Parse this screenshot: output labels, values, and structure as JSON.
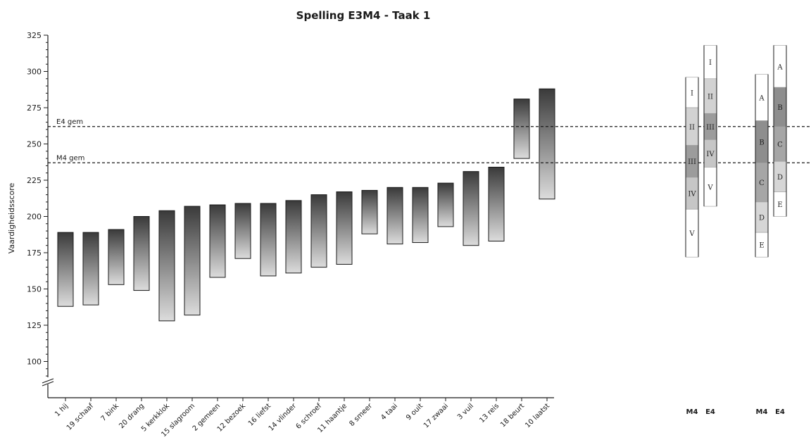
{
  "chart_data": {
    "type": "floating_bar",
    "title": "Spelling E3M4 - Taak 1",
    "ylabel": "Vaardigheidsscore",
    "ylim": [
      75,
      325
    ],
    "yticks": [
      100,
      125,
      150,
      175,
      200,
      225,
      250,
      275,
      300,
      325
    ],
    "categories": [
      "1 hij",
      "19 schaaf",
      "7 bink",
      "20 drang",
      "5 kerkklok",
      "15 slagroom",
      "2 gemeen",
      "12 bezoek",
      "16 liefst",
      "14 vlinder",
      "6 schroef",
      "11 haantje",
      "8 smeer",
      "4 taai",
      "9 ouit",
      "17 zwaai",
      "3 vuil",
      "13 reis",
      "18 beurt",
      "10 laatst"
    ],
    "ranges": [
      [
        138,
        189
      ],
      [
        139,
        189
      ],
      [
        153,
        191
      ],
      [
        149,
        200
      ],
      [
        128,
        204
      ],
      [
        132,
        207
      ],
      [
        158,
        208
      ],
      [
        171,
        209
      ],
      [
        159,
        209
      ],
      [
        161,
        211
      ],
      [
        165,
        215
      ],
      [
        167,
        217
      ],
      [
        188,
        218
      ],
      [
        181,
        220
      ],
      [
        182,
        220
      ],
      [
        193,
        223
      ],
      [
        180,
        231
      ],
      [
        183,
        234
      ],
      [
        240,
        281
      ],
      [
        212,
        288
      ]
    ],
    "reference_lines": [
      {
        "label": "E4 gem",
        "value": 262
      },
      {
        "label": "M4 gem",
        "value": 237
      }
    ],
    "norm_groups": [
      {
        "columns": [
          {
            "label": "M4",
            "top": 296,
            "bottom": 172,
            "bands": [
              {
                "label": "I",
                "from": 275,
                "to": 296,
                "shade": "#ffffff"
              },
              {
                "label": "II",
                "from": 249,
                "to": 275,
                "shade": "#d2d2d2"
              },
              {
                "label": "III",
                "from": 227,
                "to": 249,
                "shade": "#9c9c9c"
              },
              {
                "label": "IV",
                "from": 205,
                "to": 227,
                "shade": "#c6c6c6"
              },
              {
                "label": "V",
                "from": 172,
                "to": 205,
                "shade": "#ffffff"
              }
            ]
          },
          {
            "label": "E4",
            "top": 318,
            "bottom": 207,
            "bands": [
              {
                "label": "I",
                "from": 295,
                "to": 318,
                "shade": "#ffffff"
              },
              {
                "label": "II",
                "from": 271,
                "to": 295,
                "shade": "#d2d2d2"
              },
              {
                "label": "III",
                "from": 253,
                "to": 271,
                "shade": "#9c9c9c"
              },
              {
                "label": "IV",
                "from": 234,
                "to": 253,
                "shade": "#c6c6c6"
              },
              {
                "label": "V",
                "from": 207,
                "to": 234,
                "shade": "#ffffff"
              }
            ]
          }
        ]
      },
      {
        "columns": [
          {
            "label": "M4",
            "top": 298,
            "bottom": 172,
            "bands": [
              {
                "label": "A",
                "from": 266,
                "to": 298,
                "shade": "#ffffff"
              },
              {
                "label": "B",
                "from": 237,
                "to": 266,
                "shade": "#8e8e8e"
              },
              {
                "label": "C",
                "from": 210,
                "to": 237,
                "shade": "#a6a6a6"
              },
              {
                "label": "D",
                "from": 189,
                "to": 210,
                "shade": "#d6d6d6"
              },
              {
                "label": "E",
                "from": 172,
                "to": 189,
                "shade": "#ffffff"
              }
            ]
          },
          {
            "label": "E4",
            "top": 318,
            "bottom": 200,
            "bands": [
              {
                "label": "A",
                "from": 289,
                "to": 318,
                "shade": "#ffffff"
              },
              {
                "label": "B",
                "from": 262,
                "to": 289,
                "shade": "#8e8e8e"
              },
              {
                "label": "C",
                "from": 238,
                "to": 262,
                "shade": "#a6a6a6"
              },
              {
                "label": "D",
                "from": 217,
                "to": 238,
                "shade": "#d6d6d6"
              },
              {
                "label": "E",
                "from": 200,
                "to": 217,
                "shade": "#ffffff"
              }
            ]
          }
        ]
      }
    ],
    "grid": false,
    "colors": {
      "bar_dark": "#3a3a3a",
      "bar_light": "#dcdcdc",
      "axis": "#1a1a1a"
    }
  }
}
